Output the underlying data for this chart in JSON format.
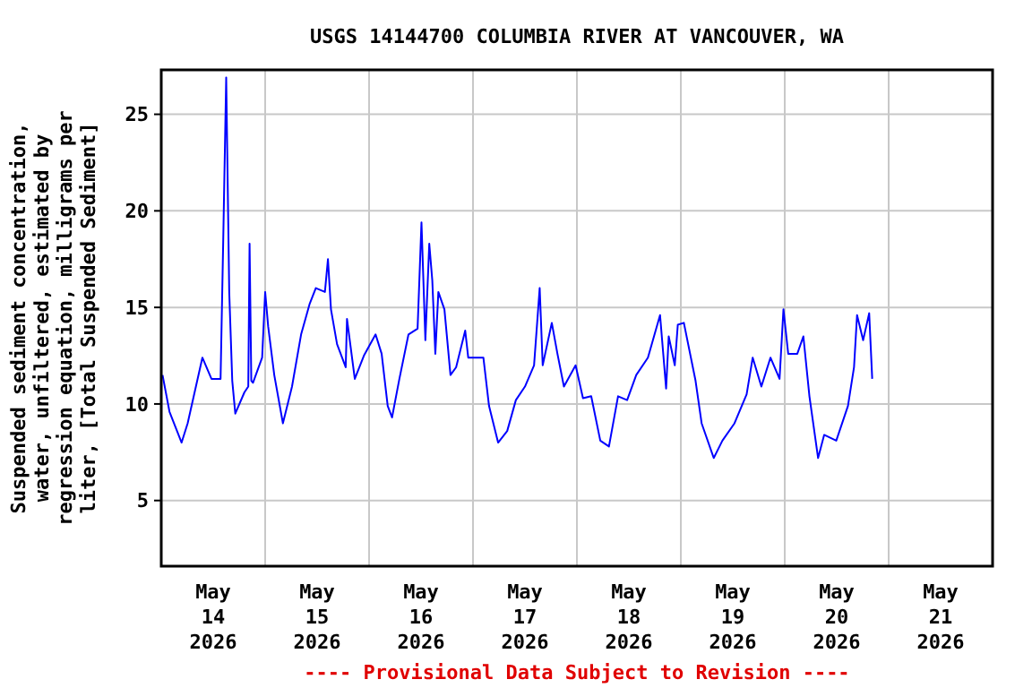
{
  "chart_data": {
    "type": "line",
    "title": "USGS 14144700 COLUMBIA RIVER AT VANCOUVER, WA",
    "ylabel": "Suspended sediment concentration,\nwater, unfiltered, estimated by\nregression equation, milligrams per\nliter, [Total Suspended Sediment]",
    "annotations": [
      "---- Provisional Data Subject to Revision ----"
    ],
    "xlim": [
      "2026-05-14T00:00",
      "2026-05-22T00:00"
    ],
    "xticks": [
      {
        "value": "2026-05-14T12:00",
        "label": "May\n14\n2026"
      },
      {
        "value": "2026-05-15T00:00",
        "label": null
      },
      {
        "value": "2026-05-15T12:00",
        "label": "May\n15\n2026"
      },
      {
        "value": "2026-05-16T00:00",
        "label": null
      },
      {
        "value": "2026-05-16T12:00",
        "label": "May\n16\n2026"
      },
      {
        "value": "2026-05-17T00:00",
        "label": null
      },
      {
        "value": "2026-05-17T12:00",
        "label": "May\n17\n2026"
      },
      {
        "value": "2026-05-18T00:00",
        "label": null
      },
      {
        "value": "2026-05-18T12:00",
        "label": "May\n18\n2026"
      },
      {
        "value": "2026-05-19T00:00",
        "label": null
      },
      {
        "value": "2026-05-19T12:00",
        "label": "May\n19\n2026"
      },
      {
        "value": "2026-05-20T00:00",
        "label": null
      },
      {
        "value": "2026-05-20T12:00",
        "label": "May\n20\n2026"
      },
      {
        "value": "2026-05-21T00:00",
        "label": null
      },
      {
        "value": "2026-05-21T12:00",
        "label": "May\n21\n2026"
      }
    ],
    "ylim": [
      1.6,
      27.3
    ],
    "yticks": [
      5,
      10,
      15,
      20,
      25
    ],
    "grid": true,
    "series": [
      {
        "color": "#0000ff",
        "x": [
          "2026-05-14T00:18",
          "2026-05-14T01:54",
          "2026-05-14T04:42",
          "2026-05-14T06:06",
          "2026-05-14T09:30",
          "2026-05-14T11:36",
          "2026-05-14T13:42",
          "2026-05-14T14:18",
          "2026-05-14T15:00",
          "2026-05-14T15:42",
          "2026-05-14T16:24",
          "2026-05-14T17:06",
          "2026-05-14T19:12",
          "2026-05-14T20:06",
          "2026-05-14T20:24",
          "2026-05-14T20:48",
          "2026-05-14T21:12",
          "2026-05-14T23:18",
          "2026-05-15T00:00",
          "2026-05-15T00:42",
          "2026-05-15T02:06",
          "2026-05-15T04:06",
          "2026-05-15T06:12",
          "2026-05-15T08:18",
          "2026-05-15T10:18",
          "2026-05-15T11:42",
          "2026-05-15T13:48",
          "2026-05-15T14:30",
          "2026-05-15T15:12",
          "2026-05-15T16:36",
          "2026-05-15T18:36",
          "2026-05-15T18:54",
          "2026-05-15T20:42",
          "2026-05-15T22:48",
          "2026-05-16T01:30",
          "2026-05-16T02:54",
          "2026-05-16T04:18",
          "2026-05-16T05:18",
          "2026-05-16T07:00",
          "2026-05-16T09:06",
          "2026-05-16T11:12",
          "2026-05-16T12:06",
          "2026-05-16T13:00",
          "2026-05-16T13:54",
          "2026-05-16T14:36",
          "2026-05-16T15:18",
          "2026-05-16T16:00",
          "2026-05-16T17:24",
          "2026-05-16T18:48",
          "2026-05-16T20:06",
          "2026-05-16T22:12",
          "2026-05-16T22:54",
          "2026-05-17T02:24",
          "2026-05-17T03:42",
          "2026-05-17T05:48",
          "2026-05-17T07:54",
          "2026-05-17T09:54",
          "2026-05-17T12:00",
          "2026-05-17T14:06",
          "2026-05-17T15:24",
          "2026-05-17T16:06",
          "2026-05-17T18:12",
          "2026-05-17T19:30",
          "2026-05-17T21:00",
          "2026-05-17T23:42",
          "2026-05-18T01:24",
          "2026-05-18T03:18",
          "2026-05-18T05:24",
          "2026-05-18T07:24",
          "2026-05-18T09:30",
          "2026-05-18T11:36",
          "2026-05-18T13:42",
          "2026-05-18T16:24",
          "2026-05-18T19:12",
          "2026-05-18T20:36",
          "2026-05-18T21:12",
          "2026-05-18T22:36",
          "2026-05-18T23:18",
          "2026-05-19T00:42",
          "2026-05-19T03:24",
          "2026-05-19T04:48",
          "2026-05-19T07:36",
          "2026-05-19T09:36",
          "2026-05-19T12:24",
          "2026-05-19T15:12",
          "2026-05-19T16:36",
          "2026-05-19T18:36",
          "2026-05-19T20:42",
          "2026-05-19T22:48",
          "2026-05-19T23:42",
          "2026-05-20T00:48",
          "2026-05-20T02:54",
          "2026-05-20T04:18",
          "2026-05-20T05:42",
          "2026-05-20T07:42",
          "2026-05-20T09:06",
          "2026-05-20T11:54",
          "2026-05-20T14:36",
          "2026-05-20T16:00",
          "2026-05-20T16:42",
          "2026-05-20T18:06",
          "2026-05-20T19:30",
          "2026-05-20T20:12"
        ],
        "values": [
          11.5,
          9.6,
          8.0,
          9.0,
          12.4,
          11.3,
          11.3,
          18.3,
          26.9,
          15.8,
          11.2,
          9.5,
          10.6,
          10.9,
          18.3,
          11.2,
          11.1,
          12.4,
          15.8,
          14.0,
          11.5,
          9.0,
          10.9,
          13.6,
          15.2,
          16.0,
          15.8,
          17.5,
          14.9,
          13.1,
          11.9,
          14.4,
          11.3,
          12.5,
          13.6,
          12.6,
          9.9,
          9.3,
          11.3,
          13.6,
          13.9,
          19.4,
          13.3,
          18.3,
          16.4,
          12.6,
          15.8,
          14.9,
          11.5,
          11.9,
          13.8,
          12.4,
          12.4,
          9.9,
          8.0,
          8.6,
          10.2,
          10.9,
          12.0,
          16.0,
          12.0,
          14.2,
          12.6,
          10.9,
          12.0,
          10.3,
          10.4,
          8.1,
          7.8,
          10.4,
          10.2,
          11.5,
          12.4,
          14.6,
          10.8,
          13.5,
          12.0,
          14.1,
          14.2,
          11.2,
          9.0,
          7.2,
          8.1,
          9.0,
          10.5,
          12.4,
          10.9,
          12.4,
          11.3,
          14.9,
          12.6,
          12.6,
          13.5,
          10.4,
          7.2,
          8.4,
          8.1,
          9.9,
          11.9,
          14.6,
          13.3,
          14.7,
          11.3
        ]
      }
    ]
  }
}
